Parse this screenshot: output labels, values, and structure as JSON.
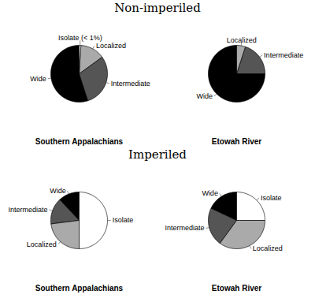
{
  "chart_data": [
    {
      "type": "pie",
      "title": "Non-imperiled",
      "subtitle": "Southern Appalachians",
      "categories": [
        "Wide",
        "Intermediate",
        "Localized",
        "Isolate (< 1%)"
      ],
      "values": [
        55,
        30,
        14,
        1
      ],
      "colors": [
        "#000000",
        "#555555",
        "#aaaaaa",
        "#ffffff"
      ]
    },
    {
      "type": "pie",
      "title": "Non-imperiled",
      "subtitle": "Etowah River",
      "categories": [
        "Wide",
        "Intermediate",
        "Localized"
      ],
      "values": [
        75,
        20,
        5
      ],
      "colors": [
        "#000000",
        "#555555",
        "#aaaaaa"
      ]
    },
    {
      "type": "pie",
      "title": "Imperiled",
      "subtitle": "Southern Appalachians",
      "categories": [
        "Wide",
        "Intermediate",
        "Localized",
        "Isolate"
      ],
      "values": [
        12,
        15,
        23,
        50
      ],
      "colors": [
        "#000000",
        "#555555",
        "#aaaaaa",
        "#ffffff"
      ]
    },
    {
      "type": "pie",
      "title": "Imperiled",
      "subtitle": "Etowah River",
      "categories": [
        "Wide",
        "Intermediate",
        "Localized",
        "Isolate"
      ],
      "values": [
        18,
        22,
        35,
        25
      ],
      "colors": [
        "#000000",
        "#555555",
        "#aaaaaa",
        "#ffffff"
      ]
    }
  ]
}
